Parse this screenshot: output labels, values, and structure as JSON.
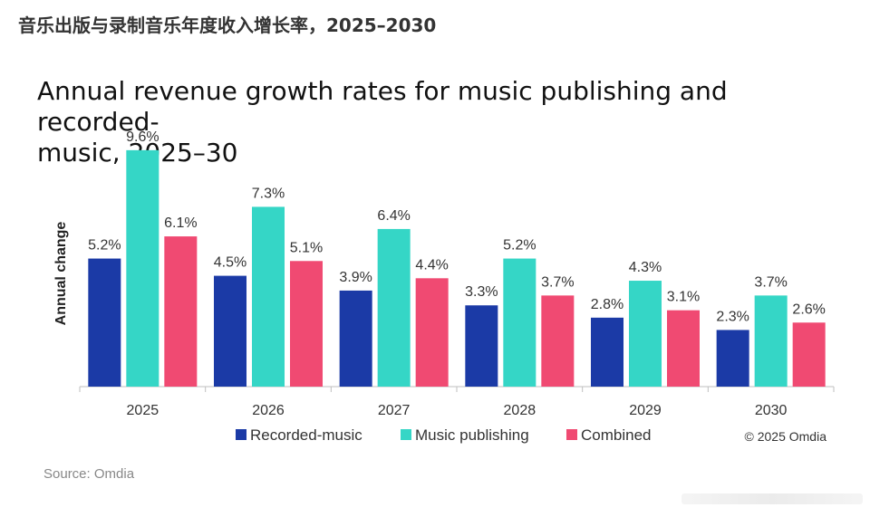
{
  "header": {
    "title": "音乐出版与录制音乐年度收入增长率，2025–2030"
  },
  "source": "Source: Omdia",
  "credit": "© 2025 Omdia",
  "chart_data": {
    "type": "bar",
    "title": "Annual revenue growth rates for music publishing and recorded-music, 2025–30",
    "title_lines": [
      "Annual revenue growth rates for music publishing and recorded-",
      "music, 2025–30"
    ],
    "xlabel": "",
    "ylabel": "Annual change",
    "categories": [
      "2025",
      "2026",
      "2027",
      "2028",
      "2029",
      "2030"
    ],
    "ylim": [
      0,
      10
    ],
    "grid": false,
    "legend_position": "bottom",
    "value_suffix": "%",
    "series": [
      {
        "name": "Recorded-music",
        "color": "#1b3aa6",
        "values": [
          5.2,
          4.5,
          3.9,
          3.3,
          2.8,
          2.3
        ]
      },
      {
        "name": "Music publishing",
        "color": "#35d6c6",
        "values": [
          9.6,
          7.3,
          6.4,
          5.2,
          4.3,
          3.7
        ]
      },
      {
        "name": "Combined",
        "color": "#f04a72",
        "values": [
          6.1,
          5.1,
          4.4,
          3.7,
          3.1,
          2.6
        ]
      }
    ]
  }
}
